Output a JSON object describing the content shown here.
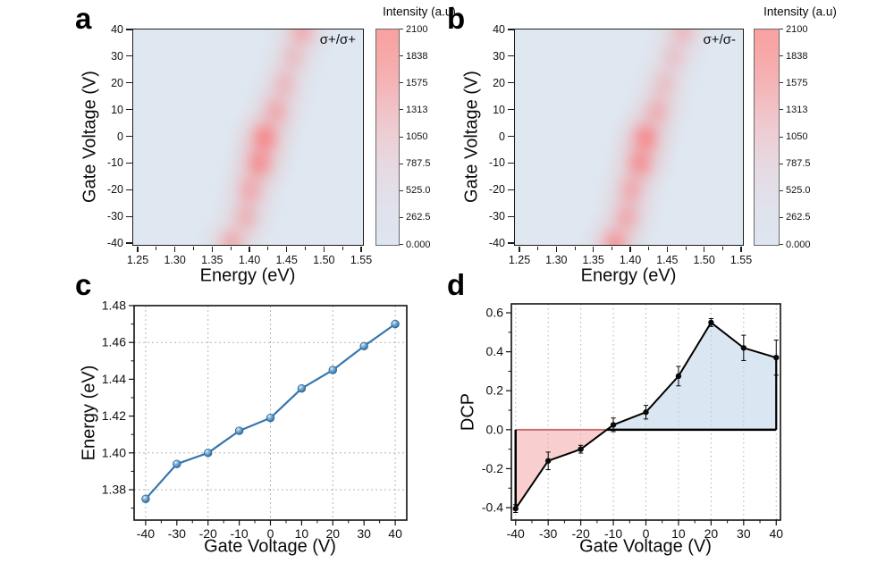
{
  "figure": {
    "background": "#ffffff"
  },
  "colors": {
    "heatmap_background": "#dfe8f1",
    "heatmap_hot": "#ff6464",
    "line_blue": "#3876ad",
    "marker_blue_edge": "#2c608f",
    "fill_negative_pink": "rgba(243,166,166,0.55)",
    "fill_positive_blue": "rgba(188,211,231,0.55)",
    "zero_line_negative": "#c96f6f",
    "grid": "#b5b5b5",
    "axis_black": "#1c1c1c"
  },
  "panel_a": {
    "label": "a",
    "corner_label": "σ+/σ+",
    "xlabel": "Energy (eV)",
    "ylabel": "Gate Voltage (V)",
    "colorbar_title": "Intensity (a.u)"
  },
  "panel_b": {
    "label": "b",
    "corner_label": "σ+/σ-",
    "xlabel": "Energy (eV)",
    "ylabel": "Gate Voltage (V)",
    "colorbar_title": "Intensity (a.u)"
  },
  "panel_c": {
    "label": "c",
    "xlabel": "Gate Voltage (V)",
    "ylabel": "Energy (eV)"
  },
  "panel_d": {
    "label": "d",
    "xlabel": "Gate Voltage (V)",
    "ylabel": "DCP"
  },
  "chart_data": [
    {
      "type": "heatmap",
      "panel": "a",
      "title": "σ+/σ+",
      "xlabel": "Energy (eV)",
      "ylabel": "Gate Voltage (V)",
      "xlim": [
        1.25,
        1.55
      ],
      "ylim": [
        -40,
        40
      ],
      "x_ticks": [
        1.25,
        1.3,
        1.35,
        1.4,
        1.45,
        1.5,
        1.55
      ],
      "x_tick_labels": [
        "1.25",
        "1.30",
        "1.35",
        "1.40",
        "1.45",
        "1.50",
        "1.55"
      ],
      "y_ticks": [
        40,
        30,
        20,
        10,
        0,
        -10,
        -20,
        -30,
        -40
      ],
      "y_tick_labels": [
        "40",
        "30",
        "20",
        "10",
        "0",
        "-10",
        "-20",
        "-30",
        "-40"
      ],
      "colorbar": {
        "title": "Intensity (a.u)",
        "vmin": 0,
        "vmax": 2100,
        "tick_labels": [
          "2100",
          "1838",
          "1575",
          "1313",
          "1050",
          "787.5",
          "525.0",
          "262.5",
          "0.000"
        ]
      },
      "emission_ridge": [
        {
          "gate_v": -40,
          "energy": 1.375,
          "rel_intensity": 0.52
        },
        {
          "gate_v": -30,
          "energy": 1.394,
          "rel_intensity": 0.42
        },
        {
          "gate_v": -20,
          "energy": 1.4,
          "rel_intensity": 0.5
        },
        {
          "gate_v": -10,
          "energy": 1.412,
          "rel_intensity": 0.78
        },
        {
          "gate_v": 0,
          "energy": 1.419,
          "rel_intensity": 0.88
        },
        {
          "gate_v": 10,
          "energy": 1.435,
          "rel_intensity": 0.5
        },
        {
          "gate_v": 20,
          "energy": 1.445,
          "rel_intensity": 0.36
        },
        {
          "gate_v": 30,
          "energy": 1.458,
          "rel_intensity": 0.32
        },
        {
          "gate_v": 40,
          "energy": 1.47,
          "rel_intensity": 0.5
        }
      ]
    },
    {
      "type": "heatmap",
      "panel": "b",
      "title": "σ+/σ-",
      "xlabel": "Energy (eV)",
      "ylabel": "Gate Voltage (V)",
      "xlim": [
        1.25,
        1.55
      ],
      "ylim": [
        -40,
        40
      ],
      "x_ticks": [
        1.25,
        1.3,
        1.35,
        1.4,
        1.45,
        1.5,
        1.55
      ],
      "x_tick_labels": [
        "1.25",
        "1.30",
        "1.35",
        "1.40",
        "1.45",
        "1.50",
        "1.55"
      ],
      "y_ticks": [
        40,
        30,
        20,
        10,
        0,
        -10,
        -20,
        -30,
        -40
      ],
      "y_tick_labels": [
        "40",
        "30",
        "20",
        "10",
        "0",
        "-10",
        "-20",
        "-30",
        "-40"
      ],
      "colorbar": {
        "title": "Intensity (a.u)",
        "vmin": 0,
        "vmax": 2100,
        "tick_labels": [
          "2100",
          "1838",
          "1575",
          "1313",
          "1050",
          "787.5",
          "525.0",
          "262.5",
          "0.000"
        ]
      },
      "emission_ridge": [
        {
          "gate_v": -40,
          "energy": 1.378,
          "rel_intensity": 0.72
        },
        {
          "gate_v": -30,
          "energy": 1.394,
          "rel_intensity": 0.5
        },
        {
          "gate_v": -20,
          "energy": 1.4,
          "rel_intensity": 0.5
        },
        {
          "gate_v": -10,
          "energy": 1.412,
          "rel_intensity": 0.75
        },
        {
          "gate_v": 0,
          "energy": 1.419,
          "rel_intensity": 0.85
        },
        {
          "gate_v": 10,
          "energy": 1.435,
          "rel_intensity": 0.45
        },
        {
          "gate_v": 20,
          "energy": 1.445,
          "rel_intensity": 0.3
        },
        {
          "gate_v": 30,
          "energy": 1.458,
          "rel_intensity": 0.27
        },
        {
          "gate_v": 40,
          "energy": 1.47,
          "rel_intensity": 0.38
        }
      ]
    },
    {
      "type": "line",
      "panel": "c",
      "xlabel": "Gate Voltage (V)",
      "ylabel": "Energy (eV)",
      "x": [
        -40,
        -30,
        -20,
        -10,
        0,
        10,
        20,
        30,
        40
      ],
      "y": [
        1.375,
        1.394,
        1.4,
        1.412,
        1.419,
        1.435,
        1.445,
        1.458,
        1.47
      ],
      "xlim": [
        -43.7,
        43.7
      ],
      "ylim": [
        1.3635,
        1.48
      ],
      "x_ticks": [
        -40,
        -30,
        -20,
        -10,
        0,
        10,
        20,
        30,
        40
      ],
      "x_tick_labels": [
        "-40",
        "-30",
        "-20",
        "-10",
        "0",
        "10",
        "20",
        "30",
        "40"
      ],
      "y_ticks": [
        1.38,
        1.4,
        1.42,
        1.44,
        1.46,
        1.48
      ],
      "y_tick_labels": [
        "1.38",
        "1.40",
        "1.42",
        "1.44",
        "1.46",
        "1.48"
      ],
      "grid_x": [
        -40,
        -20,
        0,
        20,
        40
      ],
      "grid_y": [
        1.38,
        1.4,
        1.46
      ],
      "line_color": "#3876ad"
    },
    {
      "type": "line_area_errorbar",
      "panel": "d",
      "xlabel": "Gate Voltage (V)",
      "ylabel": "DCP",
      "x": [
        -40,
        -30,
        -20,
        -10,
        0,
        10,
        20,
        30,
        40
      ],
      "y": [
        -0.405,
        -0.16,
        -0.1,
        0.025,
        0.09,
        0.275,
        0.55,
        0.42,
        0.37
      ],
      "yerr": [
        0.02,
        0.045,
        0.02,
        0.035,
        0.035,
        0.05,
        0.02,
        0.065,
        0.09
      ],
      "xlim": [
        -41.3,
        41.3
      ],
      "ylim": [
        -0.464,
        0.646
      ],
      "x_ticks": [
        -40,
        -30,
        -20,
        -10,
        0,
        10,
        20,
        30,
        40
      ],
      "x_tick_labels": [
        "-40",
        "-30",
        "-20",
        "-10",
        "0",
        "10",
        "20",
        "30",
        "40"
      ],
      "y_ticks": [
        0.6,
        0.4,
        0.2,
        0.0,
        -0.2,
        -0.4
      ],
      "y_tick_labels": [
        "0.6",
        "0.4",
        "0.2",
        "0.0",
        "-0.2",
        "-0.4"
      ],
      "grid_x": [
        -40,
        -30,
        -20,
        -10,
        0,
        10,
        20,
        30,
        40
      ],
      "zero_crossing_x": -12,
      "zero_line_y": 0
    }
  ]
}
